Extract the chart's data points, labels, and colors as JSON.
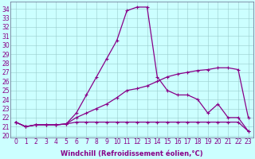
{
  "xlabel": "Windchill (Refroidissement éolien,°C)",
  "background_color": "#ccffff",
  "line_color": "#880088",
  "x_ticks": [
    0,
    1,
    2,
    3,
    4,
    5,
    6,
    7,
    8,
    9,
    10,
    11,
    12,
    13,
    14,
    15,
    16,
    17,
    18,
    19,
    20,
    21,
    22,
    23
  ],
  "y_ticks": [
    20,
    21,
    22,
    23,
    24,
    25,
    26,
    27,
    28,
    29,
    30,
    31,
    32,
    33,
    34
  ],
  "ylim": [
    19.8,
    34.8
  ],
  "xlim": [
    -0.5,
    23.5
  ],
  "series": [
    [
      21.5,
      21.0,
      21.2,
      21.2,
      21.2,
      21.3,
      21.5,
      21.5,
      21.5,
      21.5,
      21.5,
      21.5,
      21.5,
      21.5,
      21.5,
      21.5,
      21.5,
      21.5,
      21.5,
      21.5,
      21.5,
      21.5,
      21.5,
      20.5
    ],
    [
      21.5,
      21.0,
      21.2,
      21.2,
      21.2,
      21.3,
      22.5,
      24.5,
      26.5,
      28.5,
      30.5,
      33.8,
      34.2,
      34.2,
      26.5,
      25.0,
      24.5,
      24.5,
      24.0,
      22.5,
      23.5,
      22.0,
      22.0,
      20.5
    ],
    [
      21.5,
      21.0,
      21.2,
      21.2,
      21.2,
      21.3,
      22.0,
      22.5,
      23.0,
      23.5,
      24.2,
      25.0,
      25.2,
      25.5,
      26.0,
      26.5,
      26.8,
      27.0,
      27.2,
      27.3,
      27.5,
      27.5,
      27.3,
      22.0
    ]
  ],
  "tick_fontsize": 5.5,
  "xlabel_fontsize": 6.0,
  "linewidth": 0.9,
  "markersize": 2.5
}
